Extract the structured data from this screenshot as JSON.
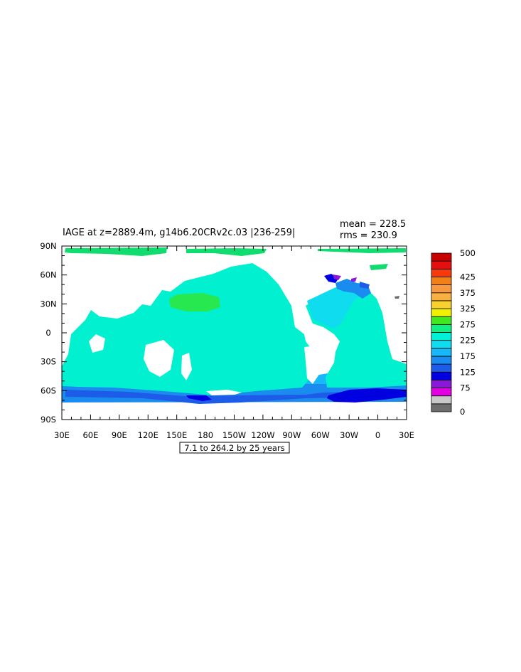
{
  "title": "IAGE at z=2889.4m, g14b6.20CRv2c.03 |236-259|",
  "stats": {
    "mean": "mean = 228.5",
    "rms": "rms = 230.9"
  },
  "contour_info": "7.1 to 264.2 by 25 years",
  "axes": {
    "lat_ticks": [
      {
        "label": "90N",
        "value": 90
      },
      {
        "label": "60N",
        "value": 60
      },
      {
        "label": "30N",
        "value": 30
      },
      {
        "label": "0",
        "value": 0
      },
      {
        "label": "30S",
        "value": -30
      },
      {
        "label": "60S",
        "value": -60
      },
      {
        "label": "90S",
        "value": -90
      }
    ],
    "lon_ticks": [
      {
        "label": "30E",
        "value": 30
      },
      {
        "label": "60E",
        "value": 60
      },
      {
        "label": "90E",
        "value": 90
      },
      {
        "label": "120E",
        "value": 120
      },
      {
        "label": "150E",
        "value": 150
      },
      {
        "label": "180",
        "value": 180
      },
      {
        "label": "150W",
        "value": 210
      },
      {
        "label": "120W",
        "value": 240
      },
      {
        "label": "90W",
        "value": 270
      },
      {
        "label": "60W",
        "value": 300
      },
      {
        "label": "30W",
        "value": 330
      },
      {
        "label": "0",
        "value": 360
      },
      {
        "label": "30E",
        "value": 390
      }
    ]
  },
  "colorbar": {
    "colors": [
      "#6e6e6e",
      "#c8c8c8",
      "#e000e0",
      "#8a18d8",
      "#0000e0",
      "#1c5ce8",
      "#1a8cf0",
      "#18b8f8",
      "#10dcf0",
      "#00f0d8",
      "#10f080",
      "#40e820",
      "#f0f000",
      "#f8d030",
      "#f8b040",
      "#f89840",
      "#f08018",
      "#f83a0a",
      "#e41010",
      "#c80000"
    ],
    "labels": [
      {
        "text": "500",
        "index": 20
      },
      {
        "text": "425",
        "index": 17
      },
      {
        "text": "375",
        "index": 15
      },
      {
        "text": "325",
        "index": 13
      },
      {
        "text": "275",
        "index": 11
      },
      {
        "text": "225",
        "index": 9
      },
      {
        "text": "175",
        "index": 7
      },
      {
        "text": "125",
        "index": 5
      },
      {
        "text": "75",
        "index": 3
      },
      {
        "text": "0",
        "index": 0
      }
    ]
  }
}
